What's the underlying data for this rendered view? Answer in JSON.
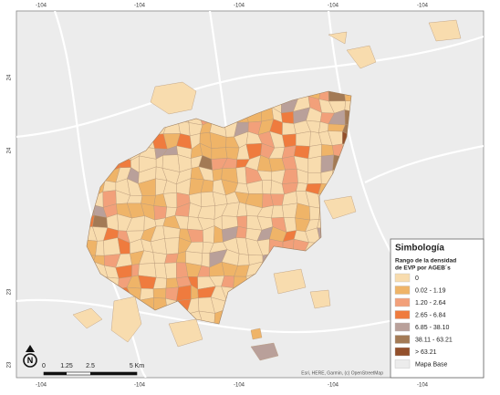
{
  "map": {
    "top_labels": [
      "-104",
      "-104",
      "-104",
      "-104",
      "-104"
    ],
    "bottom_labels": [
      "-104",
      "-104",
      "-104",
      "-104",
      "-104"
    ],
    "left_labels": [
      "24",
      "24",
      "23",
      "23"
    ],
    "legend": {
      "title": "Simbología",
      "subtitle": [
        "Rango de la densidad",
        "de EVP por AGEB´s"
      ],
      "items": [
        {
          "label": "0",
          "color": "#f8dcae"
        },
        {
          "label": "0.02 - 1.19",
          "color": "#efb468"
        },
        {
          "label": "1.20 - 2.64",
          "color": "#f2a07a"
        },
        {
          "label": "2.65 - 6.84",
          "color": "#ef7b3e"
        },
        {
          "label": "6.85 - 38.10",
          "color": "#b9a09a"
        },
        {
          "label": "38.11 - 63.21",
          "color": "#a37a55"
        },
        {
          "label": "> 63.21",
          "color": "#93502c"
        },
        {
          "label": "Mapa Base",
          "color": "#ececec"
        }
      ]
    },
    "scale_labels": [
      "0",
      "1.25",
      "2.5",
      "5 Km"
    ],
    "north": "N",
    "attribution": "Esri, HERE, Garmin, (c) OpenStreetMap"
  }
}
